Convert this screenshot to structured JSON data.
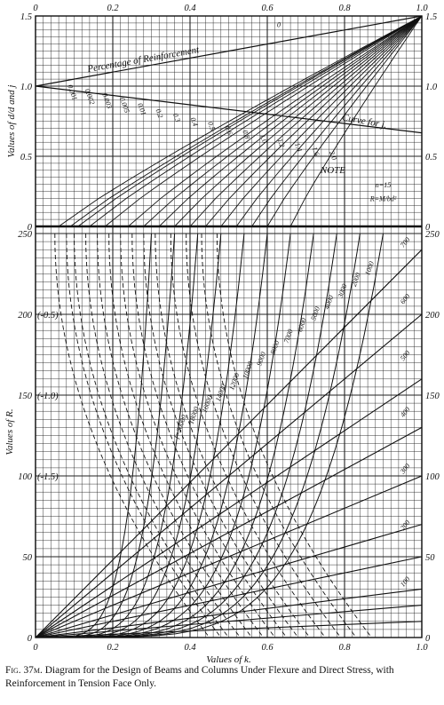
{
  "caption": {
    "figure": "Fig. 37m.",
    "text": "Diagram for the Design of Beams and Columns Under Flexure and Direct Stress, with Reinforcement in Tension Face Only."
  },
  "chart_data": [
    {
      "panel": "upper",
      "type": "line",
      "ylabel": "Values of d/d and j",
      "xlim": [
        0,
        1.0
      ],
      "ylim": [
        0,
        1.5
      ],
      "x_ticks": [
        "0",
        "0.2",
        "0.4",
        "0.6",
        "0.8",
        "1.0"
      ],
      "y_ticks": [
        "0",
        "0.5",
        "1.0",
        "1.5"
      ],
      "annotations": [
        "Percentage of Reinforcement",
        "Curve for j.",
        "NOTE",
        "n=15",
        "R=M/bd²"
      ],
      "curve_labels": [
        "0.001",
        "0.002",
        "0.003",
        "0.005",
        "0.01",
        "0.2",
        "0.3",
        "0.4",
        "0.5",
        "0.6",
        "0.8",
        "1.0",
        "1.2",
        "1.4",
        "1.6",
        "2.0",
        "0"
      ],
      "series": [
        {
          "name": "Percentage of Reinforcement",
          "x": [
            0,
            1.0
          ],
          "y": [
            1.0,
            1.5
          ]
        },
        {
          "name": "Curve for j.",
          "x": [
            0,
            1.0
          ],
          "y": [
            1.0,
            0.667
          ]
        }
      ]
    },
    {
      "panel": "lower",
      "type": "line",
      "xlabel": "Values of k.",
      "ylabel": "Values of R.",
      "xlim": [
        0,
        1.0
      ],
      "ylim": [
        0,
        250
      ],
      "x_ticks": [
        "0",
        "0.2",
        "0.4",
        "0.6",
        "0.8",
        "1.0"
      ],
      "y_ticks": [
        "0",
        "50",
        "100",
        "150",
        "200",
        "250"
      ],
      "left_labels": [
        "(-0.5)",
        "(-1.0)",
        "(-1.5)"
      ],
      "right_labels": [
        "100",
        "200",
        "300",
        "400",
        "500",
        "600",
        "700"
      ],
      "curve_labels": [
        "f=20000",
        "18000",
        "16000",
        "14000",
        "12000",
        "10000",
        "9000",
        "8000",
        "7000",
        "6000",
        "5000",
        "4000",
        "3000",
        "2000",
        "1000"
      ]
    }
  ]
}
